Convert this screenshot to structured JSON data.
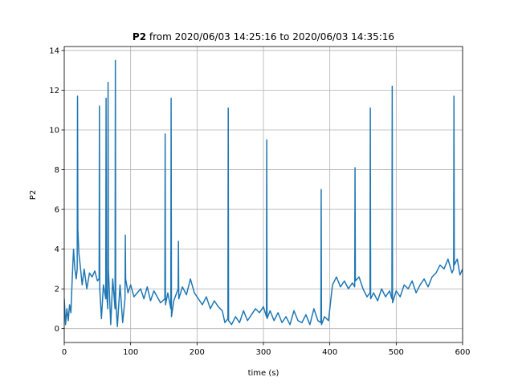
{
  "chart_data": {
    "type": "line",
    "title": [
      "P2",
      "from 2020/06/03 14:25:16 to 2020/06/03 14:35:16"
    ],
    "xlabel": "time (s)",
    "ylabel": "P2",
    "color": "#1f77b4",
    "grid": true,
    "xlim": [
      0,
      600
    ],
    "ylim": [
      -0.7,
      14.2
    ],
    "xticks": [
      0,
      100,
      200,
      300,
      400,
      500,
      600
    ],
    "yticks": [
      0,
      2,
      4,
      6,
      8,
      10,
      12,
      14
    ],
    "x": [
      0,
      2,
      4,
      6,
      8,
      10,
      12,
      14,
      16,
      18,
      19.5,
      20,
      20.5,
      22,
      24,
      27,
      30,
      34,
      38,
      42,
      46,
      50,
      52.5,
      53,
      53.5,
      56,
      59,
      62.5,
      63,
      63.5,
      65.5,
      66,
      66.5,
      70,
      73,
      76.5,
      77,
      77.5,
      80,
      84,
      88,
      91.5,
      92,
      92.5,
      96,
      100,
      105,
      110,
      115,
      120,
      125,
      130,
      135,
      140,
      145,
      151.5,
      152,
      152.5,
      156,
      160.5,
      161,
      161.5,
      165,
      171.5,
      172,
      172.5,
      178,
      184,
      190,
      196,
      202,
      208,
      214,
      220,
      226,
      232,
      238,
      242,
      246.5,
      247,
      247.5,
      252,
      258,
      264,
      270,
      276,
      282,
      288,
      294,
      300,
      304.5,
      305,
      305.5,
      310,
      316,
      322,
      328,
      334,
      340,
      346,
      352,
      358,
      364,
      370,
      376,
      382,
      386.5,
      387,
      387.5,
      392,
      398,
      404,
      410,
      416,
      422,
      428,
      434,
      437.5,
      438,
      438.5,
      444,
      450,
      456,
      460.5,
      461,
      461.5,
      466,
      472,
      478,
      484,
      490,
      493.5,
      494,
      494.5,
      500,
      506,
      512,
      518,
      524,
      530,
      536,
      542,
      548,
      554,
      560,
      566,
      572,
      578,
      584,
      586.5,
      587,
      587.5,
      592,
      596,
      600
    ],
    "values": [
      1.5,
      0.2,
      1.0,
      0.4,
      1.2,
      0.8,
      2.5,
      4.0,
      3.0,
      2.5,
      3,
      11.7,
      5,
      3.8,
      3.2,
      2.2,
      3.0,
      2.0,
      2.8,
      2.6,
      2.9,
      2.4,
      2.5,
      11.2,
      2.0,
      0.5,
      2.2,
      1.5,
      11.6,
      2.0,
      1.0,
      12.4,
      3.0,
      0.2,
      2.5,
      1.0,
      13.5,
      1.5,
      0.1,
      2.2,
      0.3,
      1.5,
      4.7,
      2.5,
      1.8,
      2.2,
      1.6,
      1.8,
      2.0,
      1.5,
      2.1,
      1.4,
      1.9,
      1.6,
      1.3,
      1.5,
      9.8,
      1.2,
      1.8,
      1.0,
      11.6,
      0.6,
      1.4,
      2.0,
      4.4,
      1.5,
      2.1,
      1.7,
      2.5,
      1.8,
      1.5,
      1.2,
      1.6,
      1.0,
      1.4,
      1.1,
      0.9,
      0.3,
      0.5,
      11.1,
      0.4,
      0.2,
      0.6,
      0.3,
      0.9,
      0.4,
      0.7,
      1.0,
      0.8,
      1.1,
      0.6,
      9.5,
      0.5,
      0.9,
      0.4,
      0.8,
      0.3,
      0.6,
      0.2,
      0.9,
      0.4,
      0.3,
      0.7,
      0.2,
      1.0,
      0.4,
      0.3,
      7.0,
      0.2,
      0.6,
      0.4,
      2.2,
      2.6,
      2.1,
      2.4,
      2.0,
      2.3,
      2.1,
      8.1,
      2.4,
      2.6,
      2.0,
      1.6,
      1.8,
      11.1,
      1.5,
      1.8,
      1.4,
      2.0,
      1.6,
      1.9,
      1.5,
      12.2,
      1.3,
      1.9,
      1.6,
      2.2,
      2.0,
      2.4,
      1.8,
      2.2,
      2.5,
      2.1,
      2.6,
      2.8,
      3.2,
      3.0,
      3.5,
      2.8,
      3.0,
      11.7,
      3.2,
      3.5,
      2.7,
      3.0
    ]
  }
}
